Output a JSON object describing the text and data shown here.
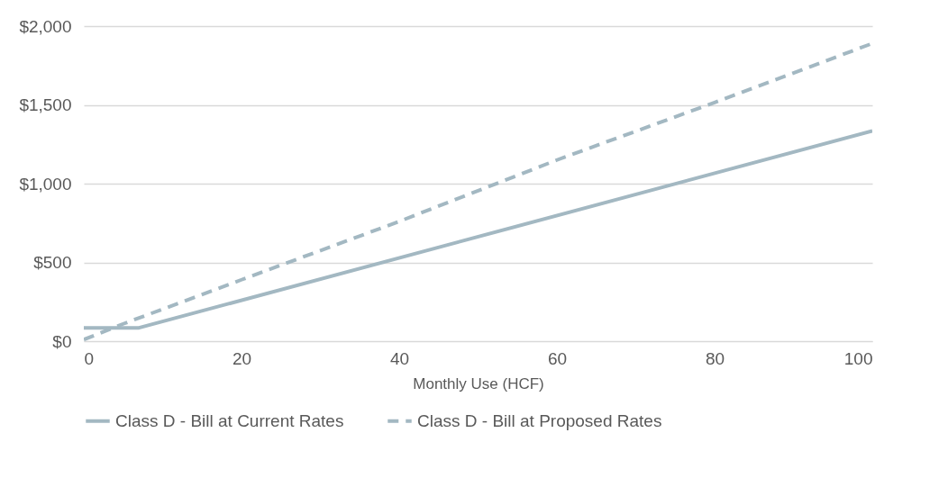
{
  "chart_data": {
    "type": "line",
    "xlabel": "Monthly Use (HCF)",
    "xlim": [
      0,
      100
    ],
    "xticks": [
      0,
      20,
      40,
      60,
      80,
      100
    ],
    "ylim": [
      0,
      2000
    ],
    "yticks": [
      {
        "value": 0,
        "label": "$0"
      },
      {
        "value": 500,
        "label": "$500"
      },
      {
        "value": 1000,
        "label": "$1,000"
      },
      {
        "value": 1500,
        "label": "$1,500"
      },
      {
        "value": 2000,
        "label": "$2,000"
      }
    ],
    "grid": "y",
    "legend": "bottom",
    "marker": "none",
    "series": [
      {
        "name": "Class D - Bill at Current Rates",
        "color": "#a3b8c2",
        "line_style": "solid",
        "x": [
          0,
          7,
          100
        ],
        "values": [
          85,
          85,
          1335
        ]
      },
      {
        "name": "Class D - Bill at Proposed Rates",
        "color": "#a3b8c2",
        "line_style": "dashed",
        "x": [
          0,
          5,
          20,
          40,
          60,
          80,
          100
        ],
        "values": [
          10,
          110,
          390,
          760,
          1150,
          1515,
          1890
        ]
      }
    ]
  }
}
